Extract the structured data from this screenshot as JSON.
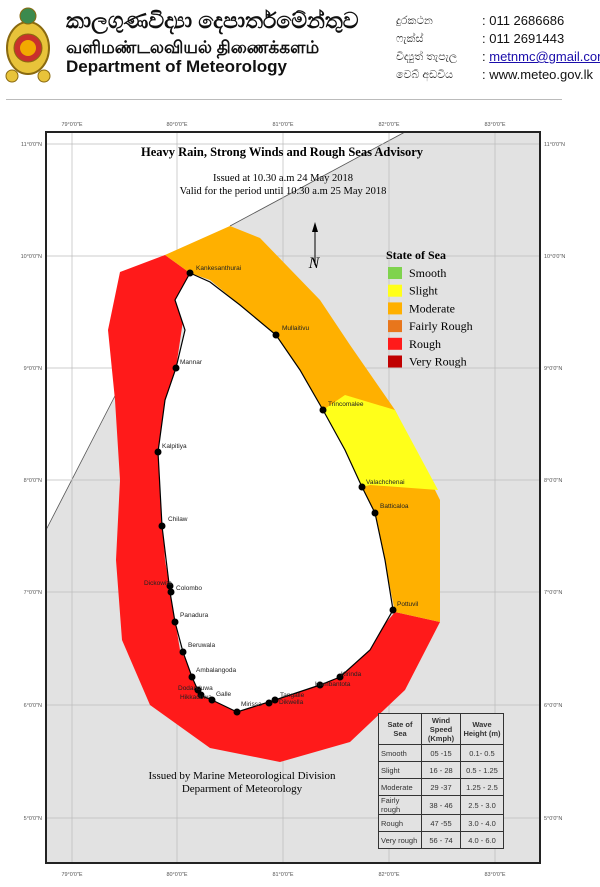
{
  "header": {
    "title_sinhala": "කාලගුණවිද්‍යා දෙපාර්තමේන්තුව",
    "title_tamil": "வளிமண்டலவியல் திணைக்களம்",
    "title_english": "Department of Meteorology",
    "contacts": [
      {
        "label": "දුරකථන",
        "value": ": 011 2686686"
      },
      {
        "label": "ෆැක්ස්",
        "value": ": 011 2691443"
      },
      {
        "label": "විද්‍යුත් තැපැල",
        "value": "metnmc@gmail.com"
      },
      {
        "label": "වෙබ් අඩවිය",
        "value": ": www.meteo.gov.lk"
      }
    ]
  },
  "map": {
    "title": "Heavy Rain, Strong Winds and Rough Seas Advisory",
    "issued": "Issued at 10.30 a.m 24 May 2018",
    "valid": "Valid for the period until 10.30 a.m 25 May 2018",
    "footer_line1": "Issued by Marine Meteorological Division",
    "footer_line2": "Deparment of Meteorology",
    "north_label": "N",
    "lon_labels": [
      "79°0'0\"E",
      "80°0'0\"E",
      "81°0'0\"E",
      "82°0'0\"E",
      "83°0'0\"E"
    ],
    "lat_labels": [
      "11°0'0\"N",
      "10°0'0\"N",
      "9°0'0\"N",
      "8°0'0\"N",
      "7°0'0\"N",
      "6°0'0\"N",
      "5°0'0\"N"
    ],
    "cities": [
      "Kankesanthurai",
      "Mullaitivu",
      "Mannar",
      "Trincomalee",
      "Kalpitiya",
      "Valachchenai",
      "Batticaloa",
      "Chilaw",
      "Dickowita",
      "Colombo",
      "Pottuvil",
      "Panadura",
      "Beruwala",
      "Ambalangoda",
      "Kirinda",
      "Hambantota",
      "Dodanduwa",
      "Hikkaduwa",
      "Galle",
      "Tangalle",
      "Dikwella",
      "Mirissa"
    ]
  },
  "legend": {
    "title": "State of Sea",
    "items": [
      {
        "label": "Smooth",
        "color": "#7fd34e"
      },
      {
        "label": "Slight",
        "color": "#ffff1a"
      },
      {
        "label": "Moderate",
        "color": "#ffb000"
      },
      {
        "label": "Fairly Rough",
        "color": "#e8761c"
      },
      {
        "label": "Rough",
        "color": "#ff1a1a"
      },
      {
        "label": "Very Rough",
        "color": "#c00000"
      }
    ]
  },
  "sea_table": {
    "headers": [
      "Sate of Sea",
      "Wind Speed (Kmph)",
      "Wave Height (m)"
    ],
    "rows": [
      [
        "Smooth",
        "05 -15",
        "0.1- 0.5"
      ],
      [
        "Slight",
        "16 - 28",
        "0.5 - 1.25"
      ],
      [
        "Moderate",
        "29 -37",
        "1.25 - 2.5"
      ],
      [
        "Fairly rough",
        "38 - 46",
        "2.5 - 3.0"
      ],
      [
        "Rough",
        "47 -55",
        "3.0 - 4.0"
      ],
      [
        "Very rough",
        "56 - 74",
        "4.0 - 6.0"
      ]
    ]
  }
}
